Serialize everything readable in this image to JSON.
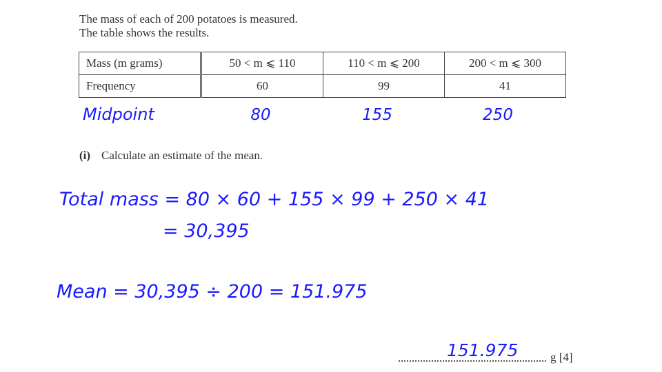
{
  "question": {
    "line1": "The mass of each of 200 potatoes is measured.",
    "line2": "The table shows the results."
  },
  "table": {
    "row_headers": [
      "Mass (m grams)",
      "Frequency"
    ],
    "intervals": [
      "50 < m ⩽ 110",
      "110 < m ⩽ 200",
      "200 < m ⩽ 300"
    ],
    "frequencies": [
      "60",
      "99",
      "41"
    ]
  },
  "handwriting": {
    "midpoint_label": "Midpoint",
    "midpoints": [
      "80",
      "155",
      "250"
    ],
    "total_line": "Total mass = 80 × 60 + 155 × 99 + 250 × 41",
    "total_result": "= 30,395",
    "mean_line": "Mean = 30,395 ÷ 200 = 151.975",
    "answer": "151.975"
  },
  "part_i": {
    "number": "(i)",
    "text": "Calculate an estimate of the mean."
  },
  "answer_suffix": "g [4]"
}
